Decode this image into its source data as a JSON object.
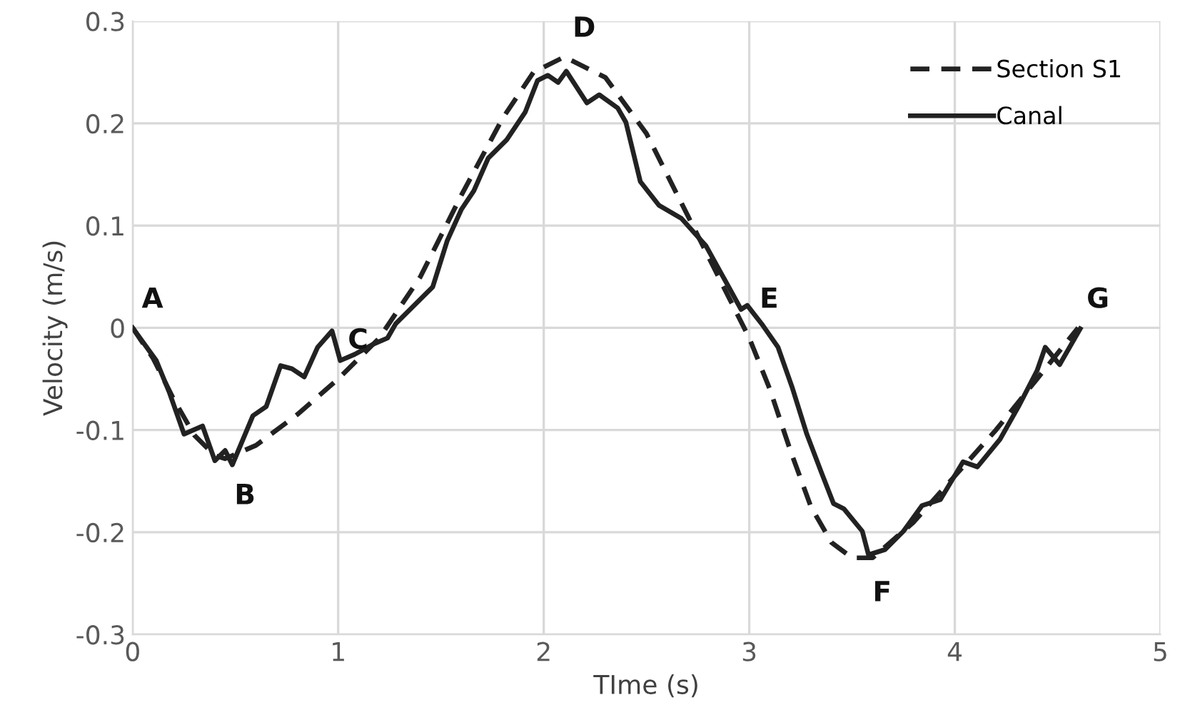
{
  "chart_data": {
    "type": "line",
    "xlabel": "TIme (s)",
    "ylabel": "Velocity (m/s)",
    "xlim": [
      0,
      5
    ],
    "xticks": [
      0,
      1,
      2,
      3,
      4,
      5
    ],
    "ylim": [
      -0.3,
      0.3
    ],
    "yticks": [
      -0.3,
      -0.2,
      -0.1,
      0,
      0.1,
      0.2,
      0.3
    ],
    "grid": true,
    "legend": "top right",
    "series": [
      {
        "name": "Section S1",
        "color": "#222222",
        "line_style": "dashed",
        "x": [
          0,
          0.1,
          0.2,
          0.3,
          0.4,
          0.45,
          0.6,
          0.8,
          1.0,
          1.2,
          1.4,
          1.6,
          1.8,
          1.95,
          2.1,
          2.3,
          2.5,
          2.7,
          2.9,
          3.0,
          3.1,
          3.2,
          3.3,
          3.4,
          3.5,
          3.6,
          3.8,
          4.0,
          4.2,
          4.4,
          4.6
        ],
        "values": [
          0,
          -0.03,
          -0.07,
          -0.105,
          -0.125,
          -0.128,
          -0.115,
          -0.085,
          -0.05,
          -0.01,
          0.05,
          0.13,
          0.205,
          0.25,
          0.265,
          0.245,
          0.19,
          0.11,
          0.03,
          -0.01,
          -0.06,
          -0.12,
          -0.175,
          -0.21,
          -0.225,
          -0.225,
          -0.19,
          -0.145,
          -0.1,
          -0.05,
          0
        ]
      },
      {
        "name": "Canal",
        "color": "#222222",
        "line_style": "solid",
        "x": [
          0,
          0.115,
          0.18,
          0.25,
          0.34,
          0.4,
          0.45,
          0.485,
          0.585,
          0.65,
          0.72,
          0.775,
          0.835,
          0.9,
          0.97,
          1.01,
          1.08,
          1.17,
          1.24,
          1.28,
          1.37,
          1.46,
          1.53,
          1.6,
          1.66,
          1.73,
          1.82,
          1.91,
          1.97,
          2.02,
          2.07,
          2.11,
          2.21,
          2.27,
          2.36,
          2.4,
          2.47,
          2.56,
          2.67,
          2.79,
          2.9,
          2.96,
          2.99,
          3.06,
          3.14,
          3.21,
          3.28,
          3.35,
          3.41,
          3.46,
          3.55,
          3.58,
          3.66,
          3.75,
          3.84,
          3.93,
          4.04,
          4.11,
          4.22,
          4.31,
          4.4,
          4.44,
          4.51,
          4.61
        ],
        "values": [
          0,
          -0.032,
          -0.064,
          -0.104,
          -0.096,
          -0.13,
          -0.12,
          -0.134,
          -0.086,
          -0.077,
          -0.037,
          -0.04,
          -0.048,
          -0.019,
          -0.003,
          -0.032,
          -0.026,
          -0.016,
          -0.01,
          0.004,
          0.022,
          0.04,
          0.085,
          0.116,
          0.134,
          0.166,
          0.184,
          0.211,
          0.242,
          0.247,
          0.24,
          0.251,
          0.22,
          0.228,
          0.215,
          0.201,
          0.143,
          0.12,
          0.107,
          0.08,
          0.04,
          0.018,
          0.022,
          0.004,
          -0.019,
          -0.059,
          -0.104,
          -0.141,
          -0.172,
          -0.177,
          -0.199,
          -0.222,
          -0.217,
          -0.199,
          -0.174,
          -0.168,
          -0.131,
          -0.136,
          -0.109,
          -0.077,
          -0.042,
          -0.019,
          -0.036,
          -0.001
        ]
      }
    ],
    "annotations": [
      {
        "text": "A",
        "x": 0,
        "y": 0
      },
      {
        "text": "B",
        "x": 0.45,
        "y": -0.13
      },
      {
        "text": "C",
        "x": 1.0,
        "y": -0.04
      },
      {
        "text": "D",
        "x": 2.1,
        "y": 0.265
      },
      {
        "text": "E",
        "x": 3.0,
        "y": 0
      },
      {
        "text": "F",
        "x": 3.55,
        "y": -0.225
      },
      {
        "text": "G",
        "x": 4.6,
        "y": 0
      }
    ]
  }
}
